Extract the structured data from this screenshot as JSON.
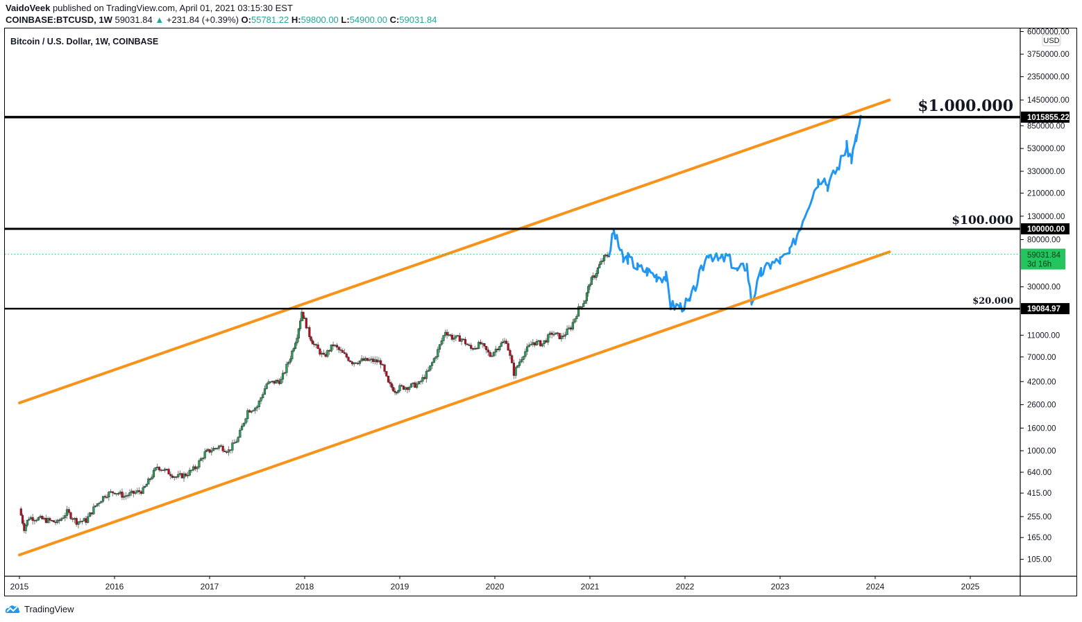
{
  "header": {
    "author": "VaidoVeek",
    "published_text": "published on TradingView.com, April 01, 2021 03:15:30 EST",
    "symbol": "COINBASE:BTCUSD, 1W",
    "last": "59031.84",
    "change": "+231.84 (+0.39%)",
    "o_label": "O:",
    "o": "55781.22",
    "h_label": "H:",
    "h": "59800.00",
    "l_label": "L:",
    "l": "54900.00",
    "c_label": "C:",
    "c": "59031.84"
  },
  "chart_title": "Bitcoin / U.S. Dollar, 1W, COINBASE",
  "footer": {
    "brand": "TradingView"
  },
  "colors": {
    "up": "#26a65b",
    "down": "#d0021b",
    "projection": "#2196f3",
    "channel": "#f7931a",
    "level": "#000000",
    "last_price": "#22c55e",
    "teal": "#26a69a"
  },
  "chart_data": {
    "type": "candlestick",
    "title": "Bitcoin / U.S. Dollar, 1W, COINBASE",
    "yscale": "log",
    "ylim": [
      70,
      6000000
    ],
    "xlim": [
      2014.9,
      2025.55
    ],
    "currency_label": "USD",
    "y_ticks": [
      "6000000.00",
      "3750000.00",
      "2350000.00",
      "1450000.00",
      "850000.00",
      "530000.00",
      "330000.00",
      "210000.00",
      "130000.00",
      "80000.00",
      "30000.00",
      "11000.00",
      "7000.00",
      "4200.00",
      "2600.00",
      "1600.00",
      "1000.00",
      "640.00",
      "415.00",
      "255.00",
      "165.00",
      "105.00"
    ],
    "x_ticks": [
      "2015",
      "2016",
      "2017",
      "2018",
      "2019",
      "2020",
      "2021",
      "2022",
      "2023",
      "2024",
      "2025"
    ],
    "historical_price": [
      [
        2015.0,
        300
      ],
      [
        2015.05,
        200
      ],
      [
        2015.1,
        250
      ],
      [
        2015.2,
        245
      ],
      [
        2015.3,
        235
      ],
      [
        2015.4,
        225
      ],
      [
        2015.5,
        280
      ],
      [
        2015.6,
        230
      ],
      [
        2015.7,
        235
      ],
      [
        2015.8,
        320
      ],
      [
        2015.9,
        400
      ],
      [
        2016.0,
        430
      ],
      [
        2016.1,
        390
      ],
      [
        2016.2,
        415
      ],
      [
        2016.3,
        440
      ],
      [
        2016.45,
        720
      ],
      [
        2016.55,
        650
      ],
      [
        2016.65,
        580
      ],
      [
        2016.75,
        610
      ],
      [
        2016.85,
        700
      ],
      [
        2016.95,
        950
      ],
      [
        2017.0,
        1000
      ],
      [
        2017.1,
        1100
      ],
      [
        2017.2,
        1000
      ],
      [
        2017.3,
        1300
      ],
      [
        2017.4,
        2300
      ],
      [
        2017.5,
        2500
      ],
      [
        2017.6,
        4000
      ],
      [
        2017.7,
        4200
      ],
      [
        2017.75,
        4300
      ],
      [
        2017.85,
        7000
      ],
      [
        2017.92,
        11000
      ],
      [
        2017.97,
        18000
      ],
      [
        2018.0,
        15000
      ],
      [
        2018.05,
        11000
      ],
      [
        2018.1,
        9000
      ],
      [
        2018.2,
        7000
      ],
      [
        2018.3,
        9000
      ],
      [
        2018.4,
        7500
      ],
      [
        2018.5,
        6300
      ],
      [
        2018.6,
        6500
      ],
      [
        2018.7,
        6500
      ],
      [
        2018.8,
        6300
      ],
      [
        2018.88,
        4000
      ],
      [
        2018.95,
        3500
      ],
      [
        2019.0,
        3700
      ],
      [
        2019.1,
        3800
      ],
      [
        2019.2,
        4000
      ],
      [
        2019.3,
        5200
      ],
      [
        2019.4,
        8000
      ],
      [
        2019.48,
        12000
      ],
      [
        2019.55,
        10500
      ],
      [
        2019.65,
        10200
      ],
      [
        2019.75,
        8300
      ],
      [
        2019.85,
        9200
      ],
      [
        2019.95,
        7200
      ],
      [
        2020.05,
        9000
      ],
      [
        2020.12,
        9800
      ],
      [
        2020.2,
        5000
      ],
      [
        2020.3,
        7500
      ],
      [
        2020.4,
        9500
      ],
      [
        2020.5,
        9200
      ],
      [
        2020.6,
        11500
      ],
      [
        2020.7,
        10500
      ],
      [
        2020.8,
        13000
      ],
      [
        2020.88,
        19000
      ],
      [
        2020.95,
        23000
      ],
      [
        2021.0,
        33000
      ],
      [
        2021.05,
        38000
      ],
      [
        2021.1,
        47000
      ],
      [
        2021.15,
        55000
      ],
      [
        2021.2,
        59000
      ]
    ],
    "projection": [
      [
        2021.2,
        59000
      ],
      [
        2021.25,
        95000
      ],
      [
        2021.3,
        72000
      ],
      [
        2021.35,
        52000
      ],
      [
        2021.4,
        55000
      ],
      [
        2021.5,
        45000
      ],
      [
        2021.6,
        42000
      ],
      [
        2021.7,
        38000
      ],
      [
        2021.8,
        37000
      ],
      [
        2021.85,
        20500
      ],
      [
        2021.95,
        20000
      ],
      [
        2022.05,
        22000
      ],
      [
        2022.15,
        38000
      ],
      [
        2022.25,
        62000
      ],
      [
        2022.35,
        52000
      ],
      [
        2022.45,
        56000
      ],
      [
        2022.55,
        42000
      ],
      [
        2022.65,
        47000
      ],
      [
        2022.7,
        22000
      ],
      [
        2022.8,
        40000
      ],
      [
        2022.9,
        48000
      ],
      [
        2023.0,
        52000
      ],
      [
        2023.1,
        60000
      ],
      [
        2023.2,
        100000
      ],
      [
        2023.3,
        170000
      ],
      [
        2023.4,
        270000
      ],
      [
        2023.45,
        300000
      ],
      [
        2023.5,
        250000
      ],
      [
        2023.6,
        350000
      ],
      [
        2023.7,
        550000
      ],
      [
        2023.75,
        430000
      ],
      [
        2023.8,
        650000
      ],
      [
        2023.85,
        1015855
      ]
    ],
    "channel_lines": [
      {
        "name": "upper",
        "from": [
          2015.0,
          2700
        ],
        "to": [
          2024.15,
          1450000
        ]
      },
      {
        "name": "lower",
        "from": [
          2015.0,
          115
        ],
        "to": [
          2024.15,
          62000
        ]
      }
    ],
    "horizontal_levels": [
      {
        "price": 1015855.22,
        "label": "1015855.22",
        "annotation": "$1.000.000"
      },
      {
        "price": 100000.0,
        "label": "100000.00",
        "annotation": "$100.000"
      },
      {
        "price": 19084.97,
        "label": "19084.97",
        "annotation": "$20.000"
      }
    ],
    "last_price": {
      "price": 59031.84,
      "label": "59031.84",
      "countdown": "3d 16h"
    }
  }
}
